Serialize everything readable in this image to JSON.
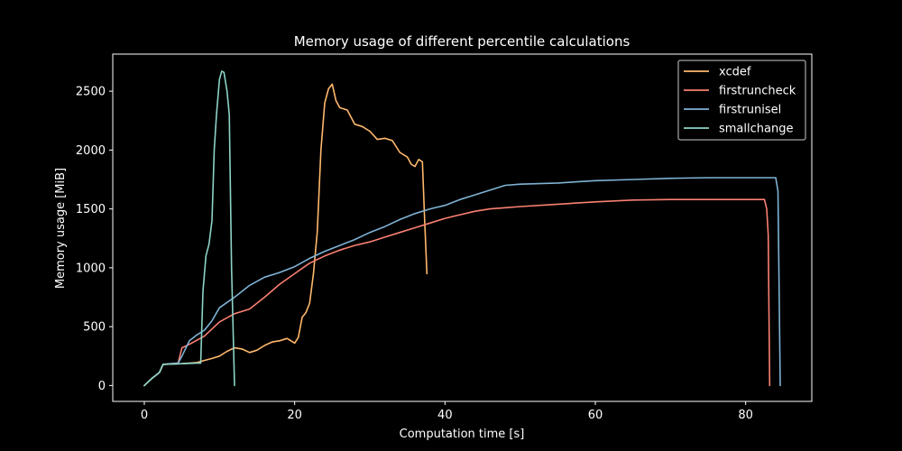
{
  "chart_data": {
    "type": "line",
    "title": "Memory usage of different percentile calculations",
    "xlabel": "Computation time [s]",
    "ylabel": "Memory usage [MiB]",
    "xlim": [
      -4.2,
      88.8
    ],
    "ylim": [
      -135,
      2815
    ],
    "xticks": [
      0,
      20,
      40,
      60,
      80
    ],
    "yticks": [
      0,
      500,
      1000,
      1500,
      2000,
      2500
    ],
    "grid": false,
    "legend_position": "top-right",
    "series": [
      {
        "name": "xcdef",
        "color": "#ffb86c",
        "points": [
          [
            0,
            0
          ],
          [
            1,
            60
          ],
          [
            2,
            110
          ],
          [
            2.5,
            180
          ],
          [
            5,
            185
          ],
          [
            7,
            195
          ],
          [
            9,
            230
          ],
          [
            10,
            250
          ],
          [
            11,
            290
          ],
          [
            12,
            320
          ],
          [
            13,
            310
          ],
          [
            14,
            280
          ],
          [
            15,
            300
          ],
          [
            16,
            340
          ],
          [
            17,
            370
          ],
          [
            18,
            380
          ],
          [
            19,
            400
          ],
          [
            20,
            360
          ],
          [
            20.5,
            410
          ],
          [
            21,
            580
          ],
          [
            21.5,
            620
          ],
          [
            22,
            700
          ],
          [
            22.5,
            950
          ],
          [
            23,
            1300
          ],
          [
            23.5,
            2000
          ],
          [
            24,
            2400
          ],
          [
            24.5,
            2520
          ],
          [
            25,
            2560
          ],
          [
            25.5,
            2420
          ],
          [
            26,
            2360
          ],
          [
            27,
            2340
          ],
          [
            28,
            2220
          ],
          [
            29,
            2200
          ],
          [
            30,
            2160
          ],
          [
            31,
            2090
          ],
          [
            32,
            2100
          ],
          [
            33,
            2080
          ],
          [
            34,
            1980
          ],
          [
            35,
            1940
          ],
          [
            35.5,
            1880
          ],
          [
            36,
            1860
          ],
          [
            36.5,
            1920
          ],
          [
            37,
            1900
          ],
          [
            37.3,
            1400
          ],
          [
            37.6,
            950
          ]
        ]
      },
      {
        "name": "firstruncheck",
        "color": "#fa8072",
        "points": [
          [
            0,
            0
          ],
          [
            1,
            60
          ],
          [
            2,
            110
          ],
          [
            2.5,
            180
          ],
          [
            4.5,
            190
          ],
          [
            5,
            320
          ],
          [
            6,
            350
          ],
          [
            8,
            420
          ],
          [
            10,
            540
          ],
          [
            12,
            610
          ],
          [
            14,
            650
          ],
          [
            16,
            750
          ],
          [
            18,
            860
          ],
          [
            20,
            950
          ],
          [
            22,
            1040
          ],
          [
            24,
            1100
          ],
          [
            26,
            1150
          ],
          [
            28,
            1190
          ],
          [
            30,
            1220
          ],
          [
            32,
            1260
          ],
          [
            34,
            1300
          ],
          [
            36,
            1340
          ],
          [
            38,
            1380
          ],
          [
            40,
            1420
          ],
          [
            42,
            1450
          ],
          [
            44,
            1480
          ],
          [
            46,
            1500
          ],
          [
            48,
            1510
          ],
          [
            50,
            1520
          ],
          [
            55,
            1540
          ],
          [
            60,
            1560
          ],
          [
            65,
            1575
          ],
          [
            70,
            1580
          ],
          [
            75,
            1580
          ],
          [
            80,
            1580
          ],
          [
            82.5,
            1580
          ],
          [
            82.8,
            1500
          ],
          [
            83,
            1280
          ],
          [
            83.2,
            0
          ]
        ]
      },
      {
        "name": "firstrunisel",
        "color": "#7fb2d4",
        "points": [
          [
            0,
            0
          ],
          [
            1,
            60
          ],
          [
            2,
            110
          ],
          [
            2.5,
            180
          ],
          [
            4.5,
            190
          ],
          [
            5,
            250
          ],
          [
            6,
            380
          ],
          [
            7,
            430
          ],
          [
            8,
            470
          ],
          [
            9,
            550
          ],
          [
            10,
            660
          ],
          [
            12,
            750
          ],
          [
            14,
            850
          ],
          [
            16,
            920
          ],
          [
            18,
            960
          ],
          [
            20,
            1010
          ],
          [
            22,
            1080
          ],
          [
            24,
            1140
          ],
          [
            26,
            1190
          ],
          [
            28,
            1240
          ],
          [
            30,
            1300
          ],
          [
            32,
            1350
          ],
          [
            34,
            1410
          ],
          [
            36,
            1460
          ],
          [
            38,
            1500
          ],
          [
            40,
            1530
          ],
          [
            42,
            1580
          ],
          [
            44,
            1620
          ],
          [
            46,
            1660
          ],
          [
            48,
            1700
          ],
          [
            50,
            1710
          ],
          [
            55,
            1720
          ],
          [
            60,
            1740
          ],
          [
            65,
            1750
          ],
          [
            70,
            1760
          ],
          [
            75,
            1765
          ],
          [
            80,
            1765
          ],
          [
            84,
            1765
          ],
          [
            84.3,
            1650
          ],
          [
            84.6,
            0
          ]
        ]
      },
      {
        "name": "smallchange",
        "color": "#8dd3c7",
        "points": [
          [
            0,
            0
          ],
          [
            1,
            60
          ],
          [
            2,
            110
          ],
          [
            2.5,
            180
          ],
          [
            5,
            185
          ],
          [
            7,
            190
          ],
          [
            7.5,
            190
          ],
          [
            7.8,
            800
          ],
          [
            8.2,
            1100
          ],
          [
            8.6,
            1200
          ],
          [
            9,
            1400
          ],
          [
            9.3,
            2000
          ],
          [
            9.6,
            2300
          ],
          [
            10,
            2600
          ],
          [
            10.3,
            2670
          ],
          [
            10.6,
            2660
          ],
          [
            11,
            2500
          ],
          [
            11.3,
            2300
          ],
          [
            11.6,
            1000
          ],
          [
            12,
            0
          ]
        ]
      }
    ]
  }
}
